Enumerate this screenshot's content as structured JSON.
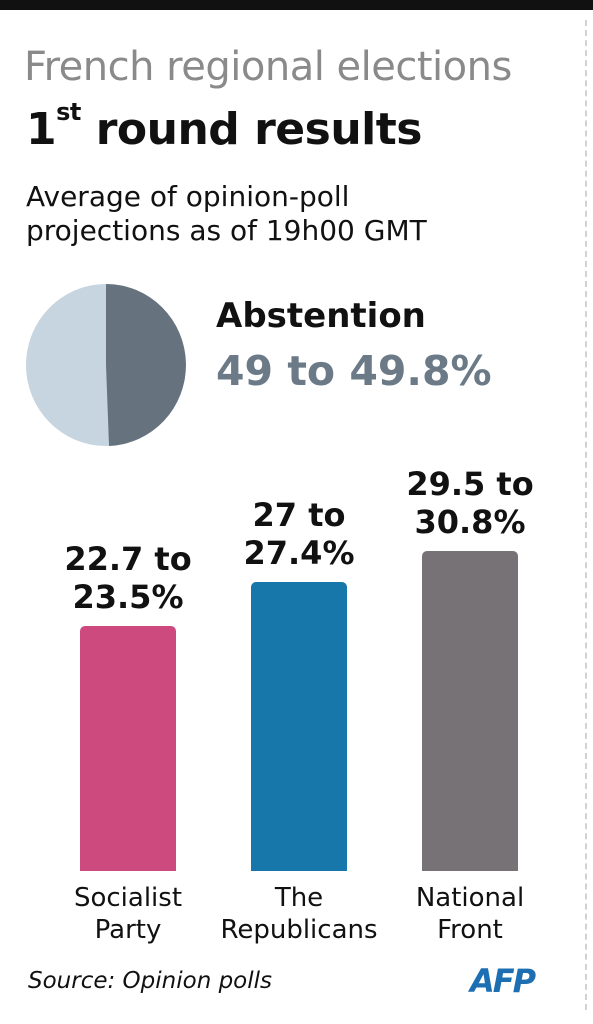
{
  "header": {
    "title": "French regional elections",
    "subtitle_ordinal": "1",
    "subtitle_sup": "st",
    "subtitle_rest": " round results",
    "description_line1": "Average of opinion-poll",
    "description_line2": "projections as of 19h00 GMT"
  },
  "abstention": {
    "label": "Abstention",
    "value": "49 to 49.8%",
    "pie_fraction": 0.494,
    "colors": {
      "share": "#66737f",
      "rest": "#c6d5e0"
    }
  },
  "chart_data": {
    "type": "bar",
    "categories": [
      "Socialist Party",
      "The Republicans",
      "National Front"
    ],
    "category_lines": [
      [
        "Socialist",
        "Party"
      ],
      [
        "The",
        "Republicans"
      ],
      [
        "National",
        "Front"
      ]
    ],
    "values": [
      23.1,
      27.2,
      30.15
    ],
    "range_low": [
      22.7,
      27,
      29.5
    ],
    "range_high": [
      23.5,
      27.4,
      30.8
    ],
    "label_lines": [
      [
        "22.7 to",
        "23.5%"
      ],
      [
        "27 to",
        "27.4%"
      ],
      [
        "29.5 to",
        "30.8%"
      ]
    ],
    "colors": [
      "#cc4a7e",
      "#1877aa",
      "#767275"
    ],
    "ylim": [
      0,
      30.8
    ],
    "grid": false
  },
  "footer": {
    "source": "Source: Opinion polls",
    "logo": "AFP"
  }
}
